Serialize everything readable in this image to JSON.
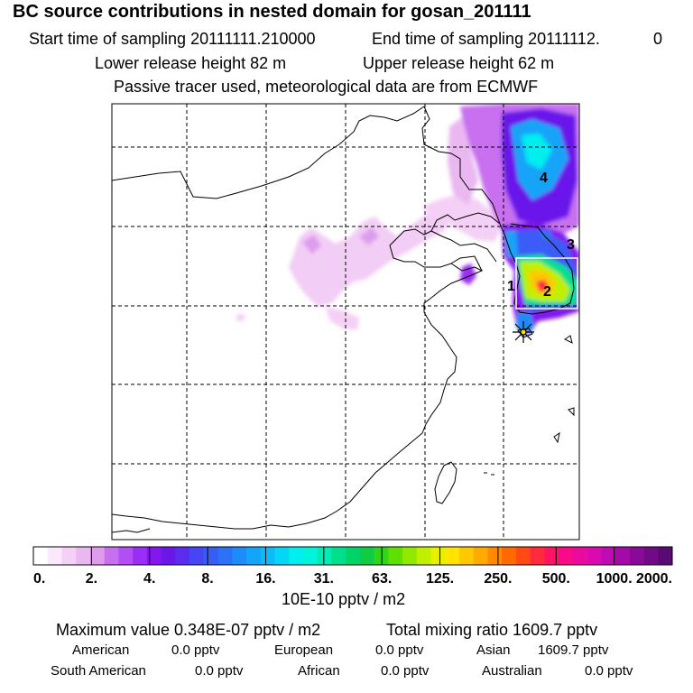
{
  "header": {
    "title": "BC  source contributions in nested domain for gosan_201111",
    "start_label": "Start time of sampling 20111111.210000",
    "end_label": "End time of sampling 20111112.",
    "end_suffix": "0",
    "lower_release": "Lower release height   82 m",
    "upper_release": "Upper release height   62 m",
    "tracer_note": "Passive tracer used, meteorological data are from ECMWF"
  },
  "chart_data": {
    "type": "heatmap",
    "title": "BC  source contributions in nested domain for gosan_201111",
    "colorbar": {
      "tick_labels": [
        "0.",
        "2.",
        "4.",
        "8.",
        "16.",
        "31.",
        "63.",
        "125.",
        "250.",
        "500.",
        "1000.",
        "2000."
      ],
      "unit": "10E-10 pptv / m2",
      "colors": [
        "#ffffff",
        "#fbe9fb",
        "#f4d0f6",
        "#eab8f0",
        "#dd9cec",
        "#c86ff0",
        "#b24ef4",
        "#9a2ef6",
        "#8417f0",
        "#6a18ea",
        "#5a2cf0",
        "#4646f4",
        "#3a5cf6",
        "#2c72f6",
        "#1e8cf8",
        "#12a4f8",
        "#0cbcf8",
        "#06d6f6",
        "#00eef0",
        "#00f4dc",
        "#00ecb4",
        "#00e08c",
        "#00d468",
        "#10cc44",
        "#30d418",
        "#60e000",
        "#90ea00",
        "#c0f000",
        "#e8f000",
        "#ffe400",
        "#ffc800",
        "#ffaa00",
        "#ff8a00",
        "#ff6a00",
        "#ff4a14",
        "#ff2a3c",
        "#ff1464",
        "#f80a88",
        "#ea0aa0",
        "#d80ab0",
        "#c00ab4",
        "#a40aa8",
        "#8a0a98",
        "#720a88",
        "#5a0a74"
      ]
    },
    "region_labels": [
      "1",
      "2",
      "3",
      "4"
    ],
    "receptor": "Gosan (star marker)",
    "grid": true
  },
  "stats": {
    "max_value": "Maximum value  0.348E-07 pptv / m2",
    "total_mixing": "Total mixing ratio     1609.7 pptv",
    "american_label": "American",
    "american_value": "0.0 pptv",
    "european_label": "European",
    "european_value": "0.0 pptv",
    "asian_label": "Asian",
    "asian_value": "1609.7 pptv",
    "south_american_label": "South American",
    "south_american_value": "0.0 pptv",
    "african_label": "African",
    "african_value": "0.0 pptv",
    "australian_label": "Australian",
    "australian_value": "0.0 pptv"
  }
}
